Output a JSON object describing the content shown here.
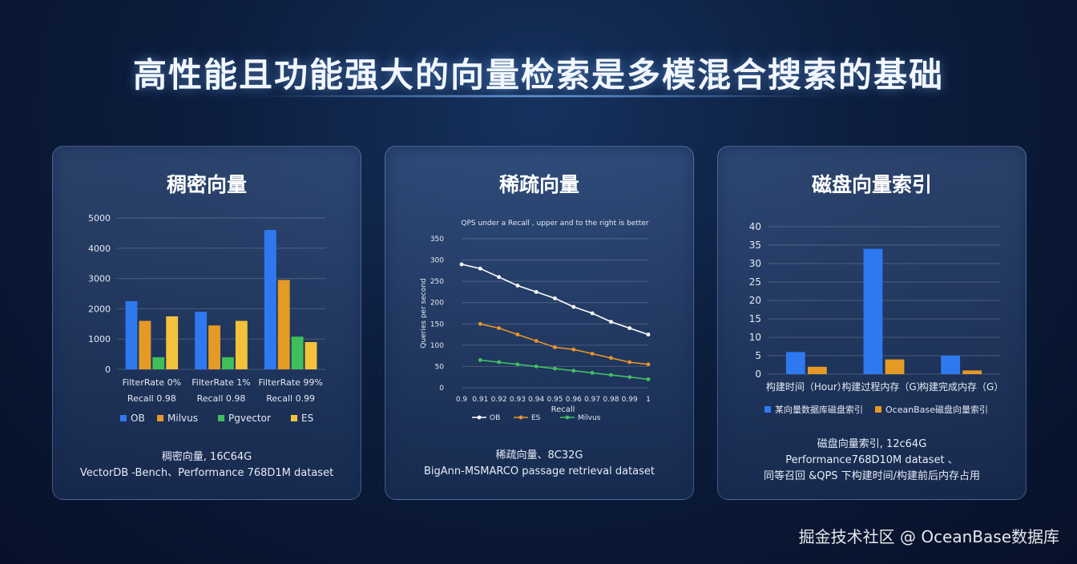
{
  "page": {
    "title": "高性能且功能强大的向量检索是多模混合搜索的基础",
    "watermark": "掘金技术社区 @ OceanBase数据库"
  },
  "panels": [
    {
      "title": "稠密向量",
      "caption": [
        "稠密向量, 16C64G",
        "VectorDB -Bench、Performance 768D1M dataset"
      ]
    },
    {
      "title": "稀疏向量",
      "caption": [
        "稀疏向量、8C32G",
        "BigAnn-MSMARCO passage retrieval dataset"
      ]
    },
    {
      "title": "磁盘向量索引",
      "caption": [
        "磁盘向量索引, 12c64G",
        "Performance768D10M dataset 、",
        "同等召回 &QPS 下构建时间/构建前后内存占用"
      ]
    }
  ],
  "colors": {
    "ob_blue": "#2e79f0",
    "milvus_orange": "#e59a25",
    "pgvector_green": "#3fbf5a",
    "es_yellow": "#f2c23a",
    "line_white": "#ffffff",
    "line_orange": "#e8952b",
    "line_green": "#43c063"
  },
  "chart_data": [
    {
      "type": "bar",
      "categories": [
        [
          "FilterRate 0%",
          "Recall 0.98"
        ],
        [
          "FilterRate 1%",
          "Recall 0.98"
        ],
        [
          "FilterRate 99%",
          "Recall 0.99"
        ]
      ],
      "series": [
        {
          "name": "OB",
          "values": [
            2250,
            1900,
            4600
          ],
          "color": "#2e79f0"
        },
        {
          "name": "Milvus",
          "values": [
            1600,
            1450,
            2950
          ],
          "color": "#e59a25"
        },
        {
          "name": "Pgvector",
          "values": [
            400,
            400,
            1080
          ],
          "color": "#3fbf5a"
        },
        {
          "name": "ES",
          "values": [
            1750,
            1600,
            900
          ],
          "color": "#f2c23a"
        }
      ],
      "yticks": [
        0,
        1000,
        2000,
        3000,
        4000,
        5000
      ],
      "ylim": [
        0,
        5000
      ],
      "legend": "bottom",
      "grid": true
    },
    {
      "type": "line",
      "title": "QPS under a Recall , upper and to the right is better",
      "xlabel": "Recall",
      "ylabel": "Queries per second",
      "x": [
        0.9,
        0.91,
        0.92,
        0.93,
        0.94,
        0.95,
        0.96,
        0.97,
        0.98,
        0.99,
        1
      ],
      "xticks": [
        "0.9",
        "0.91",
        "0.92",
        "0.93",
        "0.94",
        "0.95",
        "0.96",
        "0.97",
        "0.98",
        "0.99",
        "1"
      ],
      "yticks": [
        0,
        50,
        100,
        150,
        200,
        250,
        300,
        350
      ],
      "ylim": [
        0,
        350
      ],
      "series": [
        {
          "name": "OB",
          "x": [
            0.9,
            0.91,
            0.92,
            0.93,
            0.94,
            0.95,
            0.96,
            0.97,
            0.98,
            0.99,
            1
          ],
          "values": [
            290,
            280,
            260,
            240,
            225,
            210,
            190,
            175,
            155,
            140,
            125
          ],
          "color": "#ffffff"
        },
        {
          "name": "ES",
          "x": [
            0.91,
            0.92,
            0.93,
            0.94,
            0.95,
            0.96,
            0.97,
            0.98,
            0.99,
            1
          ],
          "values": [
            150,
            140,
            125,
            110,
            95,
            90,
            80,
            70,
            60,
            55
          ],
          "color": "#e8952b"
        },
        {
          "name": "Milvus",
          "x": [
            0.91,
            0.92,
            0.93,
            0.94,
            0.95,
            0.96,
            0.97,
            0.98,
            0.99,
            1
          ],
          "values": [
            65,
            60,
            55,
            50,
            45,
            40,
            35,
            30,
            25,
            20
          ],
          "color": "#43c063"
        }
      ],
      "legend": "bottom",
      "grid": true
    },
    {
      "type": "bar",
      "categories": [
        "构建时间（Hour）",
        "构建过程内存（G）",
        "构建完成内存（G）"
      ],
      "series": [
        {
          "name": "某向量数据库磁盘索引",
          "values": [
            6,
            34,
            5
          ],
          "color": "#2e79f0"
        },
        {
          "name": "OceanBase磁盘向量索引",
          "values": [
            2,
            4,
            1
          ],
          "color": "#e59a25"
        }
      ],
      "yticks": [
        0,
        5,
        10,
        15,
        20,
        25,
        30,
        35,
        40
      ],
      "ylim": [
        0,
        40
      ],
      "legend": "bottom",
      "grid": true
    }
  ]
}
